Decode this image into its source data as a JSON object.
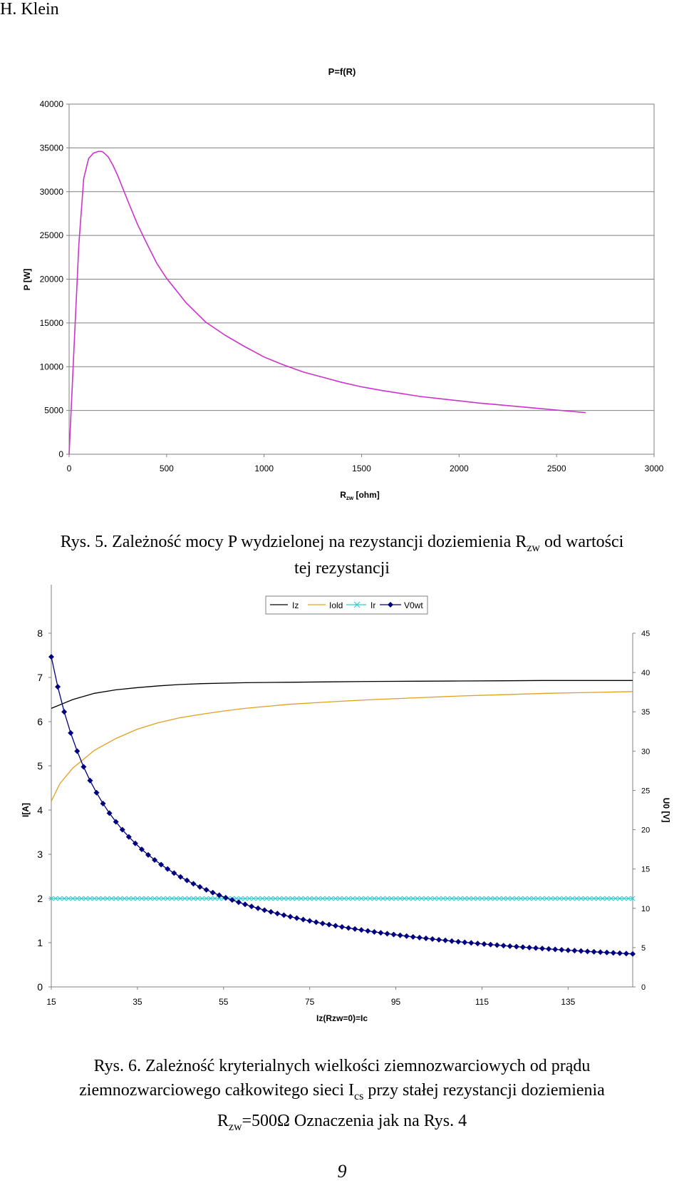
{
  "header": {
    "author": "H. Klein"
  },
  "captions": {
    "fig5": {
      "prefix": "Rys. 5. Zależność mocy P wydzielonej na rezystancji doziemienia R",
      "sub": "zw",
      "suffix": " od wartości",
      "line2": "tej rezystancji"
    },
    "fig6": {
      "l1": "Rys. 6.  Zależność kryterialnych wielkości ziemnozwarciowych od prądu",
      "l2_prefix": "ziemnozwarciowego całkowitego sieci I",
      "l2_sub": "cs",
      "l2_suffix": " przy stałej rezystancji doziemienia",
      "l3_prefix": "R",
      "l3_sub": "zw",
      "l3_suffix": "=500Ω Oznaczenia jak na Rys. 4"
    }
  },
  "page_number": "9",
  "chart_data": [
    {
      "type": "line",
      "title": "P=f(R)",
      "ylabel": "P [W]",
      "xlabel_main": "R",
      "xlabel_sub": "zw",
      "xlabel_unit": " [ohm]",
      "xlim": [
        0,
        3000
      ],
      "ylim": [
        0,
        40000
      ],
      "xticks": [
        "0",
        "500",
        "1000",
        "1500",
        "2000",
        "2500",
        "3000"
      ],
      "yticks": [
        "0",
        "5000",
        "10000",
        "15000",
        "20000",
        "25000",
        "30000",
        "35000",
        "40000"
      ],
      "grid": true,
      "color": "#cc33cc",
      "x": [
        0,
        25,
        50,
        75,
        100,
        125,
        150,
        165,
        175,
        200,
        225,
        250,
        300,
        350,
        400,
        450,
        500,
        600,
        700,
        800,
        900,
        1000,
        1100,
        1200,
        1300,
        1400,
        1500,
        1600,
        1700,
        1800,
        1900,
        2000,
        2100,
        2200,
        2300,
        2400,
        2500,
        2600,
        2650
      ],
      "y": [
        0,
        12000,
        24000,
        31500,
        33800,
        34400,
        34600,
        34600,
        34500,
        34000,
        33000,
        31800,
        29000,
        26300,
        24000,
        21800,
        20100,
        17300,
        15100,
        13600,
        12300,
        11100,
        10200,
        9400,
        8800,
        8200,
        7700,
        7300,
        6950,
        6600,
        6350,
        6100,
        5850,
        5650,
        5450,
        5250,
        5050,
        4850,
        4750
      ]
    },
    {
      "type": "line",
      "xlabel": "Iz(Rzw=0)=Ic",
      "ylabel": "I[A]",
      "y2label": "U0 [V]",
      "xlim": [
        15,
        150
      ],
      "ylim": [
        0,
        8
      ],
      "y2lim": [
        0,
        45
      ],
      "xticks": [
        "15",
        "35",
        "55",
        "75",
        "95",
        "115",
        "135"
      ],
      "yticks": [
        "0",
        "1",
        "2",
        "3",
        "4",
        "5",
        "6",
        "7",
        "8"
      ],
      "y2ticks": [
        "0",
        "5",
        "10",
        "15",
        "20",
        "25",
        "30",
        "35",
        "40",
        "45"
      ],
      "grid": false,
      "legend": "top",
      "series": [
        {
          "name": "Iz",
          "axis": "left",
          "color": "#000000",
          "x": [
            15,
            20,
            25,
            30,
            35,
            40,
            45,
            50,
            60,
            70,
            80,
            90,
            100,
            110,
            120,
            130,
            140,
            150
          ],
          "y": [
            6.3,
            6.5,
            6.64,
            6.72,
            6.77,
            6.81,
            6.84,
            6.86,
            6.88,
            6.89,
            6.9,
            6.91,
            6.915,
            6.92,
            6.925,
            6.93,
            6.93,
            6.93
          ]
        },
        {
          "name": "Iold",
          "axis": "left",
          "color": "#e0a020",
          "x": [
            15,
            17,
            20,
            25,
            30,
            35,
            40,
            45,
            50,
            55,
            60,
            70,
            80,
            90,
            100,
            110,
            120,
            130,
            140,
            150
          ],
          "y": [
            4.2,
            4.6,
            4.95,
            5.35,
            5.62,
            5.83,
            5.98,
            6.09,
            6.17,
            6.24,
            6.3,
            6.39,
            6.45,
            6.5,
            6.54,
            6.58,
            6.61,
            6.64,
            6.66,
            6.68
          ]
        },
        {
          "name": "Ir",
          "axis": "left",
          "color": "#33cccc",
          "marker": "x",
          "x_start": 15,
          "x_step": 1,
          "x_end": 150,
          "value": 2.0
        },
        {
          "name": "V0wt",
          "axis": "right",
          "color": "#000080",
          "marker": "diamond",
          "x_start": 15,
          "x_step": 1.5,
          "x_end": 150,
          "k": 630
        }
      ]
    }
  ]
}
